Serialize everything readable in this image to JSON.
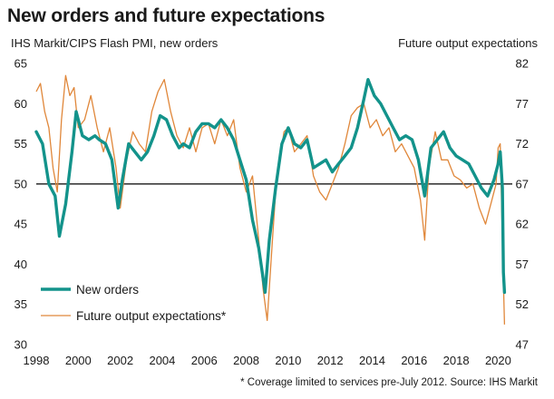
{
  "title": "New orders and future expectations",
  "ylabel_left": "IHS Markit/CIPS Flash PMI, new orders",
  "ylabel_right": "Future output expectations",
  "source": "* Coverage limited to services pre-July 2012. Source: IHS Markit",
  "colors": {
    "new_orders": "#13938b",
    "expectations": "#e0873a",
    "reference_line": "#000000"
  },
  "chart_data": {
    "type": "line",
    "x_ticks": [
      "1998",
      "2000",
      "2002",
      "2004",
      "2006",
      "2008",
      "2010",
      "2012",
      "2014",
      "2016",
      "2018",
      "2020"
    ],
    "xlim": [
      1998,
      2020.5
    ],
    "ylim_left": [
      30,
      65
    ],
    "yticks_left": [
      "30",
      "35",
      "40",
      "45",
      "50",
      "55",
      "60",
      "65"
    ],
    "ylim_right": [
      47,
      82
    ],
    "yticks_right": [
      "47",
      "52",
      "57",
      "62",
      "67",
      "72",
      "77",
      "82"
    ],
    "reference_line": 50,
    "legend_position": "bottom-left",
    "series": [
      {
        "name": "New orders",
        "axis": "left",
        "x": [
          1998.0,
          1998.3,
          1998.6,
          1998.9,
          1999.1,
          1999.4,
          1999.7,
          1999.9,
          2000.2,
          2000.5,
          2000.8,
          2001.0,
          2001.3,
          2001.6,
          2001.9,
          2002.1,
          2002.4,
          2002.7,
          2003.0,
          2003.3,
          2003.6,
          2003.9,
          2004.2,
          2004.5,
          2004.8,
          2005.0,
          2005.3,
          2005.6,
          2005.9,
          2006.2,
          2006.5,
          2006.8,
          2007.1,
          2007.4,
          2007.7,
          2008.0,
          2008.3,
          2008.6,
          2008.9,
          2009.1,
          2009.4,
          2009.7,
          2010.0,
          2010.3,
          2010.6,
          2010.9,
          2011.2,
          2011.5,
          2011.8,
          2012.1,
          2012.4,
          2012.7,
          2013.0,
          2013.3,
          2013.6,
          2013.8,
          2014.1,
          2014.4,
          2014.7,
          2015.0,
          2015.3,
          2015.6,
          2015.9,
          2016.2,
          2016.5,
          2016.8,
          2017.1,
          2017.4,
          2017.7,
          2018.0,
          2018.3,
          2018.6,
          2018.9,
          2019.2,
          2019.5,
          2019.8,
          2020.0,
          2020.1,
          2020.2,
          2020.25,
          2020.3
        ],
        "values": [
          56.5,
          55.0,
          50.0,
          48.5,
          43.5,
          47.5,
          54.0,
          59.0,
          56.0,
          55.5,
          56.0,
          55.5,
          55.0,
          53.0,
          47.0,
          50.5,
          55.0,
          54.0,
          53.0,
          54.0,
          56.0,
          58.5,
          58.0,
          56.0,
          54.5,
          55.0,
          54.5,
          56.5,
          57.5,
          57.5,
          57.0,
          58.0,
          57.0,
          55.5,
          53.0,
          50.5,
          45.5,
          42.0,
          36.5,
          43.0,
          49.5,
          55.0,
          57.0,
          55.0,
          54.5,
          55.5,
          52.0,
          52.5,
          53.0,
          51.5,
          52.5,
          53.5,
          54.5,
          57.0,
          60.5,
          63.0,
          61.0,
          60.0,
          58.5,
          57.0,
          55.5,
          56.0,
          55.5,
          53.0,
          48.5,
          54.5,
          55.5,
          56.5,
          54.5,
          53.5,
          53.0,
          52.5,
          51.0,
          49.5,
          48.5,
          50.5,
          52.5,
          54.0,
          49.5,
          39.0,
          36.5
        ]
      },
      {
        "name": "Future output expectations*",
        "axis": "right",
        "x": [
          1998.0,
          1998.2,
          1998.4,
          1998.6,
          1998.8,
          1999.0,
          1999.2,
          1999.4,
          1999.6,
          1999.8,
          2000.0,
          2000.3,
          2000.6,
          2000.9,
          2001.2,
          2001.5,
          2001.8,
          2002.0,
          2002.3,
          2002.6,
          2002.9,
          2003.2,
          2003.5,
          2003.8,
          2004.1,
          2004.4,
          2004.7,
          2005.0,
          2005.3,
          2005.6,
          2005.9,
          2006.2,
          2006.5,
          2006.8,
          2007.1,
          2007.4,
          2007.7,
          2008.0,
          2008.3,
          2008.6,
          2008.8,
          2009.0,
          2009.2,
          2009.4,
          2009.6,
          2009.8,
          2010.0,
          2010.3,
          2010.6,
          2010.9,
          2011.2,
          2011.5,
          2011.8,
          2012.1,
          2012.4,
          2012.7,
          2013.0,
          2013.3,
          2013.6,
          2013.9,
          2014.2,
          2014.5,
          2014.8,
          2015.1,
          2015.4,
          2015.7,
          2016.0,
          2016.3,
          2016.5,
          2016.7,
          2017.0,
          2017.3,
          2017.6,
          2017.9,
          2018.2,
          2018.5,
          2018.8,
          2019.1,
          2019.4,
          2019.7,
          2019.9,
          2020.0,
          2020.1,
          2020.2,
          2020.3
        ],
        "values": [
          78.5,
          79.5,
          76.0,
          74.0,
          69.0,
          66.0,
          75.0,
          80.5,
          78.0,
          79.0,
          74.0,
          75.0,
          78.0,
          74.0,
          71.0,
          74.0,
          69.0,
          64.0,
          70.0,
          73.5,
          72.0,
          71.0,
          76.0,
          78.5,
          80.0,
          76.0,
          73.0,
          71.5,
          74.0,
          71.0,
          74.0,
          74.5,
          72.0,
          75.0,
          73.0,
          75.0,
          69.0,
          66.0,
          68.0,
          60.0,
          54.0,
          50.0,
          58.0,
          66.0,
          70.0,
          73.5,
          74.0,
          71.0,
          72.0,
          73.0,
          68.0,
          66.0,
          65.0,
          67.0,
          69.0,
          72.0,
          75.5,
          76.5,
          77.0,
          74.0,
          75.0,
          73.0,
          74.0,
          71.0,
          72.0,
          70.5,
          69.0,
          65.0,
          60.0,
          69.0,
          73.5,
          70.0,
          70.0,
          68.0,
          67.5,
          66.5,
          67.0,
          64.0,
          62.0,
          65.0,
          67.0,
          71.5,
          72.0,
          60.0,
          49.5
        ]
      }
    ]
  }
}
